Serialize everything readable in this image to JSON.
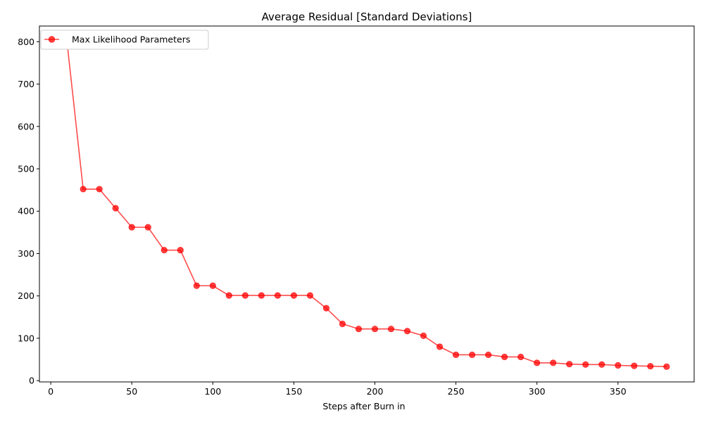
{
  "chart_data": {
    "type": "line",
    "title": "Average Residual [Standard Deviations]",
    "xlabel": "Steps after Burn in",
    "ylabel": "",
    "xlim": [
      -7,
      397
    ],
    "ylim": [
      -3,
      837
    ],
    "xticks": [
      0,
      50,
      100,
      150,
      200,
      250,
      300,
      350
    ],
    "yticks": [
      0,
      100,
      200,
      300,
      400,
      500,
      600,
      700,
      800
    ],
    "grid": false,
    "legend_position": "upper-left",
    "series": [
      {
        "name": "Max Likelihood Parameters",
        "color": "#ff0000",
        "marker": "circle",
        "x": [
          10,
          20,
          30,
          40,
          50,
          60,
          70,
          80,
          90,
          100,
          110,
          120,
          130,
          140,
          150,
          160,
          170,
          180,
          190,
          200,
          210,
          220,
          230,
          240,
          250,
          260,
          270,
          280,
          290,
          300,
          310,
          320,
          330,
          340,
          350,
          360,
          370,
          380
        ],
        "y": [
          800,
          452,
          452,
          407,
          362,
          362,
          308,
          308,
          224,
          224,
          201,
          201,
          201,
          201,
          201,
          201,
          171,
          134,
          122,
          122,
          122,
          117,
          106,
          80,
          61,
          61,
          61,
          56,
          56,
          42,
          42,
          39,
          38,
          38,
          36,
          35,
          34,
          33
        ]
      }
    ]
  }
}
